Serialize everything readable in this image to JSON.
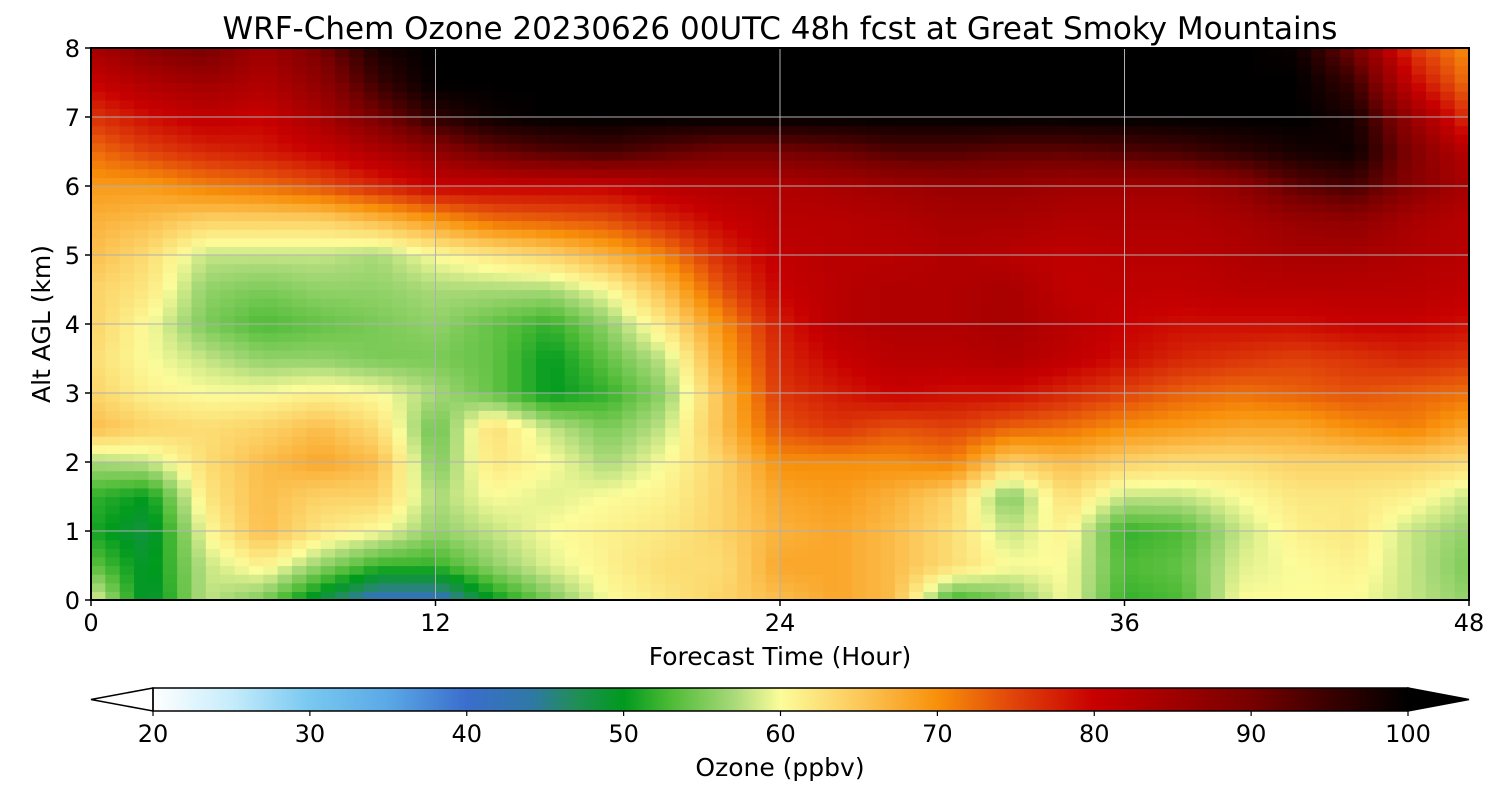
{
  "chart_data": {
    "type": "heatmap",
    "title": "WRF-Chem Ozone  20230626 00UTC 48h fcst at Great Smoky Mountains",
    "xlabel": "Forecast Time (Hour)",
    "ylabel": "Alt AGL (km)",
    "x_ticks": [
      "0",
      "12",
      "24",
      "36",
      "48"
    ],
    "y_ticks": [
      "0",
      "1",
      "2",
      "3",
      "4",
      "5",
      "6",
      "7",
      "8"
    ],
    "xlim": [
      0,
      48
    ],
    "ylim": [
      0,
      8
    ],
    "grid": true,
    "x": [
      0,
      2,
      4,
      6,
      8,
      10,
      12,
      14,
      16,
      18,
      20,
      22,
      24,
      26,
      28,
      30,
      32,
      34,
      36,
      38,
      40,
      42,
      44,
      46,
      48
    ],
    "y": [
      0,
      0.5,
      1,
      1.5,
      2,
      2.5,
      3,
      3.5,
      4,
      4.5,
      5,
      5.5,
      6,
      6.5,
      7,
      7.5,
      8
    ],
    "z": [
      [
        60,
        48,
        58,
        55,
        48,
        42,
        42,
        50,
        55,
        60,
        62,
        64,
        66,
        68,
        66,
        52,
        55,
        60,
        52,
        53,
        60,
        60,
        60,
        58,
        56
      ],
      [
        54,
        49,
        58,
        61,
        56,
        52,
        52,
        56,
        59,
        61,
        63,
        63,
        68,
        68,
        66,
        63,
        60,
        60,
        53,
        54,
        59,
        60,
        61,
        58,
        55
      ],
      [
        51,
        48,
        60,
        66,
        62,
        60,
        56,
        58,
        60,
        61,
        62,
        64,
        67,
        68,
        66,
        63,
        58,
        61,
        52,
        53,
        58,
        61,
        62,
        58,
        56
      ],
      [
        52,
        50,
        62,
        66,
        64,
        64,
        57,
        60,
        59,
        60,
        61,
        64,
        68,
        69,
        67,
        64,
        55,
        63,
        58,
        58,
        60,
        62,
        62,
        61,
        58
      ],
      [
        57,
        58,
        63,
        66,
        68,
        66,
        55,
        62,
        60,
        57,
        60,
        64,
        70,
        70,
        70,
        71,
        64,
        66,
        64,
        63,
        63,
        64,
        64,
        64,
        63
      ],
      [
        66,
        64,
        63,
        64,
        66,
        63,
        54,
        63,
        58,
        55,
        58,
        66,
        74,
        76,
        74,
        75,
        73,
        72,
        70,
        69,
        68,
        68,
        70,
        71,
        68
      ],
      [
        64,
        61,
        60,
        60,
        61,
        60,
        57,
        54,
        50,
        52,
        56,
        66,
        76,
        78,
        80,
        79,
        79,
        77,
        75,
        73,
        72,
        73,
        74,
        73,
        72
      ],
      [
        63,
        60,
        58,
        56,
        56,
        55,
        55,
        54,
        50,
        54,
        58,
        68,
        77,
        80,
        82,
        82,
        83,
        81,
        79,
        77,
        76,
        75,
        76,
        77,
        76
      ],
      [
        64,
        60,
        55,
        53,
        54,
        55,
        56,
        54,
        52,
        56,
        62,
        70,
        78,
        82,
        83,
        83,
        84,
        82,
        80,
        79,
        79,
        79,
        80,
        80,
        79
      ],
      [
        64,
        62,
        56,
        55,
        56,
        56,
        57,
        57,
        57,
        60,
        66,
        74,
        80,
        82,
        83,
        83,
        84,
        81,
        81,
        81,
        82,
        82,
        82,
        82,
        81
      ],
      [
        66,
        63,
        58,
        58,
        58,
        57,
        60,
        62,
        64,
        67,
        71,
        77,
        81,
        82,
        82,
        83,
        82,
        81,
        82,
        82,
        83,
        84,
        84,
        83,
        82
      ],
      [
        67,
        66,
        64,
        64,
        64,
        66,
        69,
        72,
        73,
        74,
        77,
        80,
        82,
        82,
        83,
        84,
        84,
        83,
        83,
        83,
        84,
        86,
        87,
        84,
        82
      ],
      [
        69,
        69,
        71,
        72,
        74,
        77,
        80,
        80,
        80,
        80,
        82,
        83,
        83,
        84,
        85,
        86,
        86,
        85,
        85,
        85,
        87,
        92,
        94,
        88,
        84
      ],
      [
        72,
        75,
        77,
        78,
        80,
        83,
        87,
        91,
        93,
        94,
        92,
        90,
        90,
        91,
        93,
        93,
        92,
        92,
        93,
        94,
        96,
        98,
        99,
        89,
        82
      ],
      [
        76,
        79,
        81,
        80,
        84,
        90,
        96,
        99,
        100,
        100,
        100,
        100,
        100,
        100,
        100,
        100,
        100,
        100,
        100,
        100,
        100,
        100,
        98,
        86,
        76
      ],
      [
        80,
        83,
        85,
        83,
        87,
        95,
        100,
        100,
        100,
        100,
        100,
        100,
        100,
        100,
        100,
        100,
        100,
        100,
        100,
        100,
        100,
        100,
        95,
        80,
        72
      ],
      [
        84,
        88,
        90,
        85,
        90,
        98,
        100,
        100,
        100,
        100,
        100,
        100,
        100,
        100,
        100,
        100,
        100,
        100,
        100,
        100,
        100,
        99,
        90,
        76,
        70
      ]
    ],
    "colorbar": {
      "label": "Ozone  (ppbv)",
      "ticks": [
        "20",
        "30",
        "40",
        "50",
        "60",
        "70",
        "80",
        "90",
        "100"
      ],
      "range": [
        20,
        100
      ],
      "extend": "both",
      "orientation": "horizontal",
      "colors": [
        [
          20,
          "#ffffff"
        ],
        [
          25,
          "#c6ecfb"
        ],
        [
          30,
          "#78c8f0"
        ],
        [
          35,
          "#5aa8e6"
        ],
        [
          40,
          "#3a6ecc"
        ],
        [
          44,
          "#2f78a8"
        ],
        [
          47,
          "#208e56"
        ],
        [
          50,
          "#009a1e"
        ],
        [
          53,
          "#4dbb36"
        ],
        [
          57,
          "#a8d978"
        ],
        [
          60,
          "#fcfc9a"
        ],
        [
          65,
          "#fcc85a"
        ],
        [
          70,
          "#f8900a"
        ],
        [
          75,
          "#e0420a"
        ],
        [
          80,
          "#c80000"
        ],
        [
          85,
          "#a00000"
        ],
        [
          90,
          "#780000"
        ],
        [
          95,
          "#3a0000"
        ],
        [
          100,
          "#000000"
        ]
      ]
    }
  }
}
